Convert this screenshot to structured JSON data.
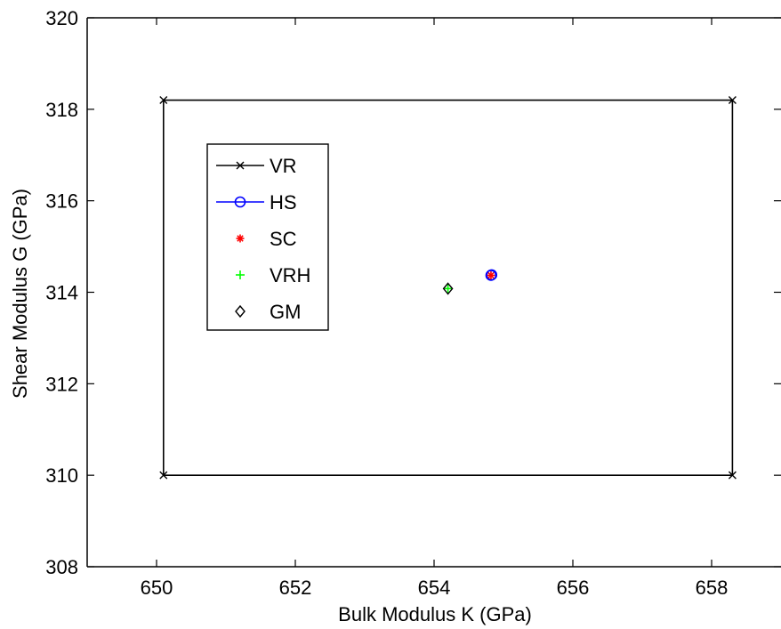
{
  "chart_data": {
    "type": "scatter",
    "xlabel": "Bulk Modulus K (GPa)",
    "ylabel": "Shear Modulus G (GPa)",
    "xlim": [
      649,
      659
    ],
    "ylim": [
      308,
      320
    ],
    "xticks": [
      "650",
      "652",
      "654",
      "656",
      "658"
    ],
    "yticks": [
      "308",
      "310",
      "312",
      "314",
      "316",
      "318",
      "320"
    ],
    "legend_position": "top-left",
    "grid": false,
    "series": [
      {
        "name": "VR",
        "marker": "x",
        "line": true,
        "color": "#000000",
        "points": [
          [
            650.1,
            318.2
          ],
          [
            658.3,
            318.2
          ],
          [
            658.3,
            310.0
          ],
          [
            650.1,
            310.0
          ],
          [
            650.1,
            318.2
          ]
        ]
      },
      {
        "name": "HS",
        "marker": "circle",
        "line": true,
        "color": "#0000ff",
        "points": [
          [
            654.82,
            314.37
          ],
          [
            654.83,
            314.38
          ]
        ]
      },
      {
        "name": "SC",
        "marker": "asterisk",
        "line": false,
        "color": "#ff0000",
        "points": [
          [
            654.82,
            314.37
          ]
        ]
      },
      {
        "name": "VRH",
        "marker": "plus",
        "line": false,
        "color": "#00ff00",
        "points": [
          [
            654.2,
            314.08
          ]
        ]
      },
      {
        "name": "GM",
        "marker": "diamond",
        "line": false,
        "color": "#000000",
        "points": [
          [
            654.2,
            314.08
          ]
        ]
      }
    ]
  }
}
